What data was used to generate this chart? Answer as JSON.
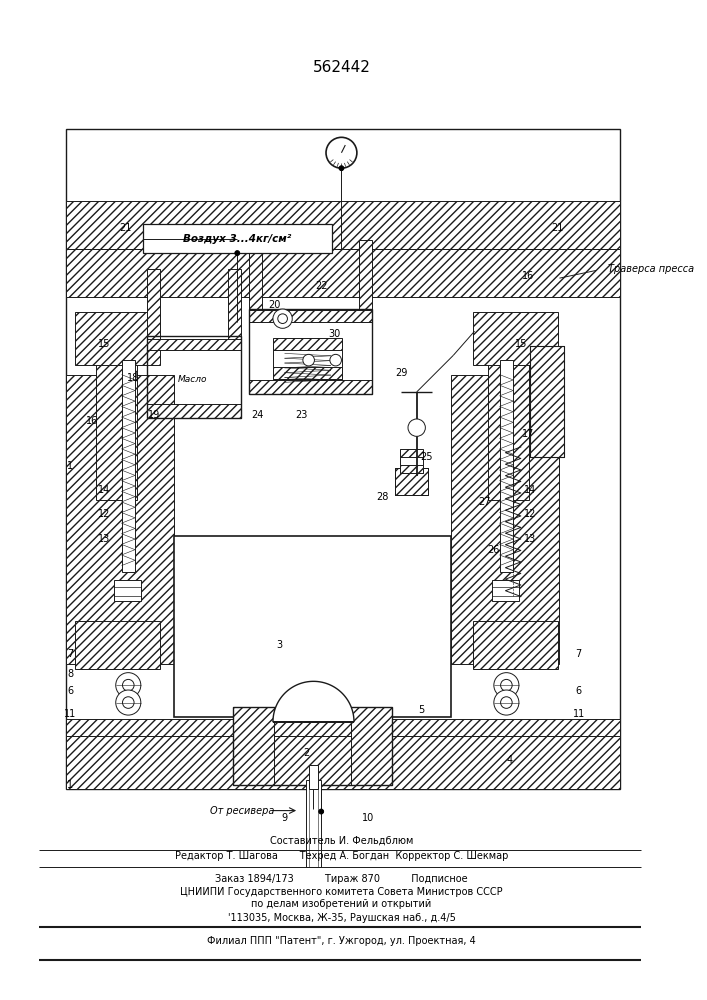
{
  "patent_number": "562442",
  "bg_color": "#ffffff",
  "line_color": "#1a1a1a",
  "fig_width": 7.07,
  "fig_height": 10.0,
  "dpi": 100,
  "label_воздух": "Воздух 3...4кг/см²",
  "label_масло": "Масло",
  "label_траверса": "Траверса пресса",
  "label_ресивер": "От ресивера",
  "footer_texts": [
    [
      354,
      853,
      "center",
      "Составитель И. Фельдблюм",
      7.0
    ],
    [
      354,
      869,
      "center",
      "Редактор Т. Шагова       Техред А. Богдан  Корректор С. Шекмар",
      7.0
    ],
    [
      354,
      893,
      "center",
      "Заказ 1894/173          Тираж 870          Подписное",
      7.0
    ],
    [
      354,
      906,
      "center",
      "ЦНИИПИ Государственного комитета Совета Министров СССР",
      7.0
    ],
    [
      354,
      919,
      "center",
      "по делам изобретений и открытий",
      7.0
    ],
    [
      354,
      933,
      "center",
      "'113035, Москва, Ж-35, Раушская наб., д.4/5",
      7.0
    ],
    [
      354,
      957,
      "center",
      "Филиал ППП \"Патент\", г. Ужгород, ул. Проектная, 4",
      7.0
    ]
  ],
  "sep_lines": [
    [
      40,
      863,
      665,
      863,
      0.7
    ],
    [
      40,
      880,
      665,
      880,
      0.7
    ],
    [
      40,
      943,
      665,
      943,
      1.5
    ],
    [
      40,
      977,
      665,
      977,
      1.5
    ]
  ],
  "element_labels": [
    [
      73,
      465,
      "1"
    ],
    [
      73,
      795,
      "1"
    ],
    [
      318,
      762,
      "2"
    ],
    [
      290,
      650,
      "3"
    ],
    [
      528,
      770,
      "4"
    ],
    [
      437,
      718,
      "5"
    ],
    [
      73,
      698,
      "6"
    ],
    [
      600,
      698,
      "6"
    ],
    [
      73,
      660,
      "7"
    ],
    [
      600,
      660,
      "7"
    ],
    [
      73,
      680,
      "8"
    ],
    [
      295,
      830,
      "9"
    ],
    [
      382,
      830,
      "10"
    ],
    [
      73,
      722,
      "11"
    ],
    [
      600,
      722,
      "11"
    ],
    [
      108,
      515,
      "12"
    ],
    [
      550,
      515,
      "12"
    ],
    [
      108,
      540,
      "13"
    ],
    [
      550,
      540,
      "13"
    ],
    [
      108,
      490,
      "14"
    ],
    [
      550,
      490,
      "14"
    ],
    [
      108,
      338,
      "15"
    ],
    [
      540,
      338,
      "15"
    ],
    [
      95,
      418,
      "16"
    ],
    [
      548,
      268,
      "16"
    ],
    [
      548,
      432,
      "17"
    ],
    [
      138,
      373,
      "18"
    ],
    [
      160,
      412,
      "19"
    ],
    [
      285,
      298,
      "20"
    ],
    [
      130,
      218,
      "21"
    ],
    [
      578,
      218,
      "21"
    ],
    [
      333,
      278,
      "22"
    ],
    [
      312,
      412,
      "23"
    ],
    [
      267,
      412,
      "24"
    ],
    [
      442,
      455,
      "25"
    ],
    [
      512,
      552,
      "26"
    ],
    [
      502,
      502,
      "27"
    ],
    [
      397,
      497,
      "28"
    ],
    [
      416,
      368,
      "29"
    ],
    [
      347,
      328,
      "30"
    ]
  ]
}
